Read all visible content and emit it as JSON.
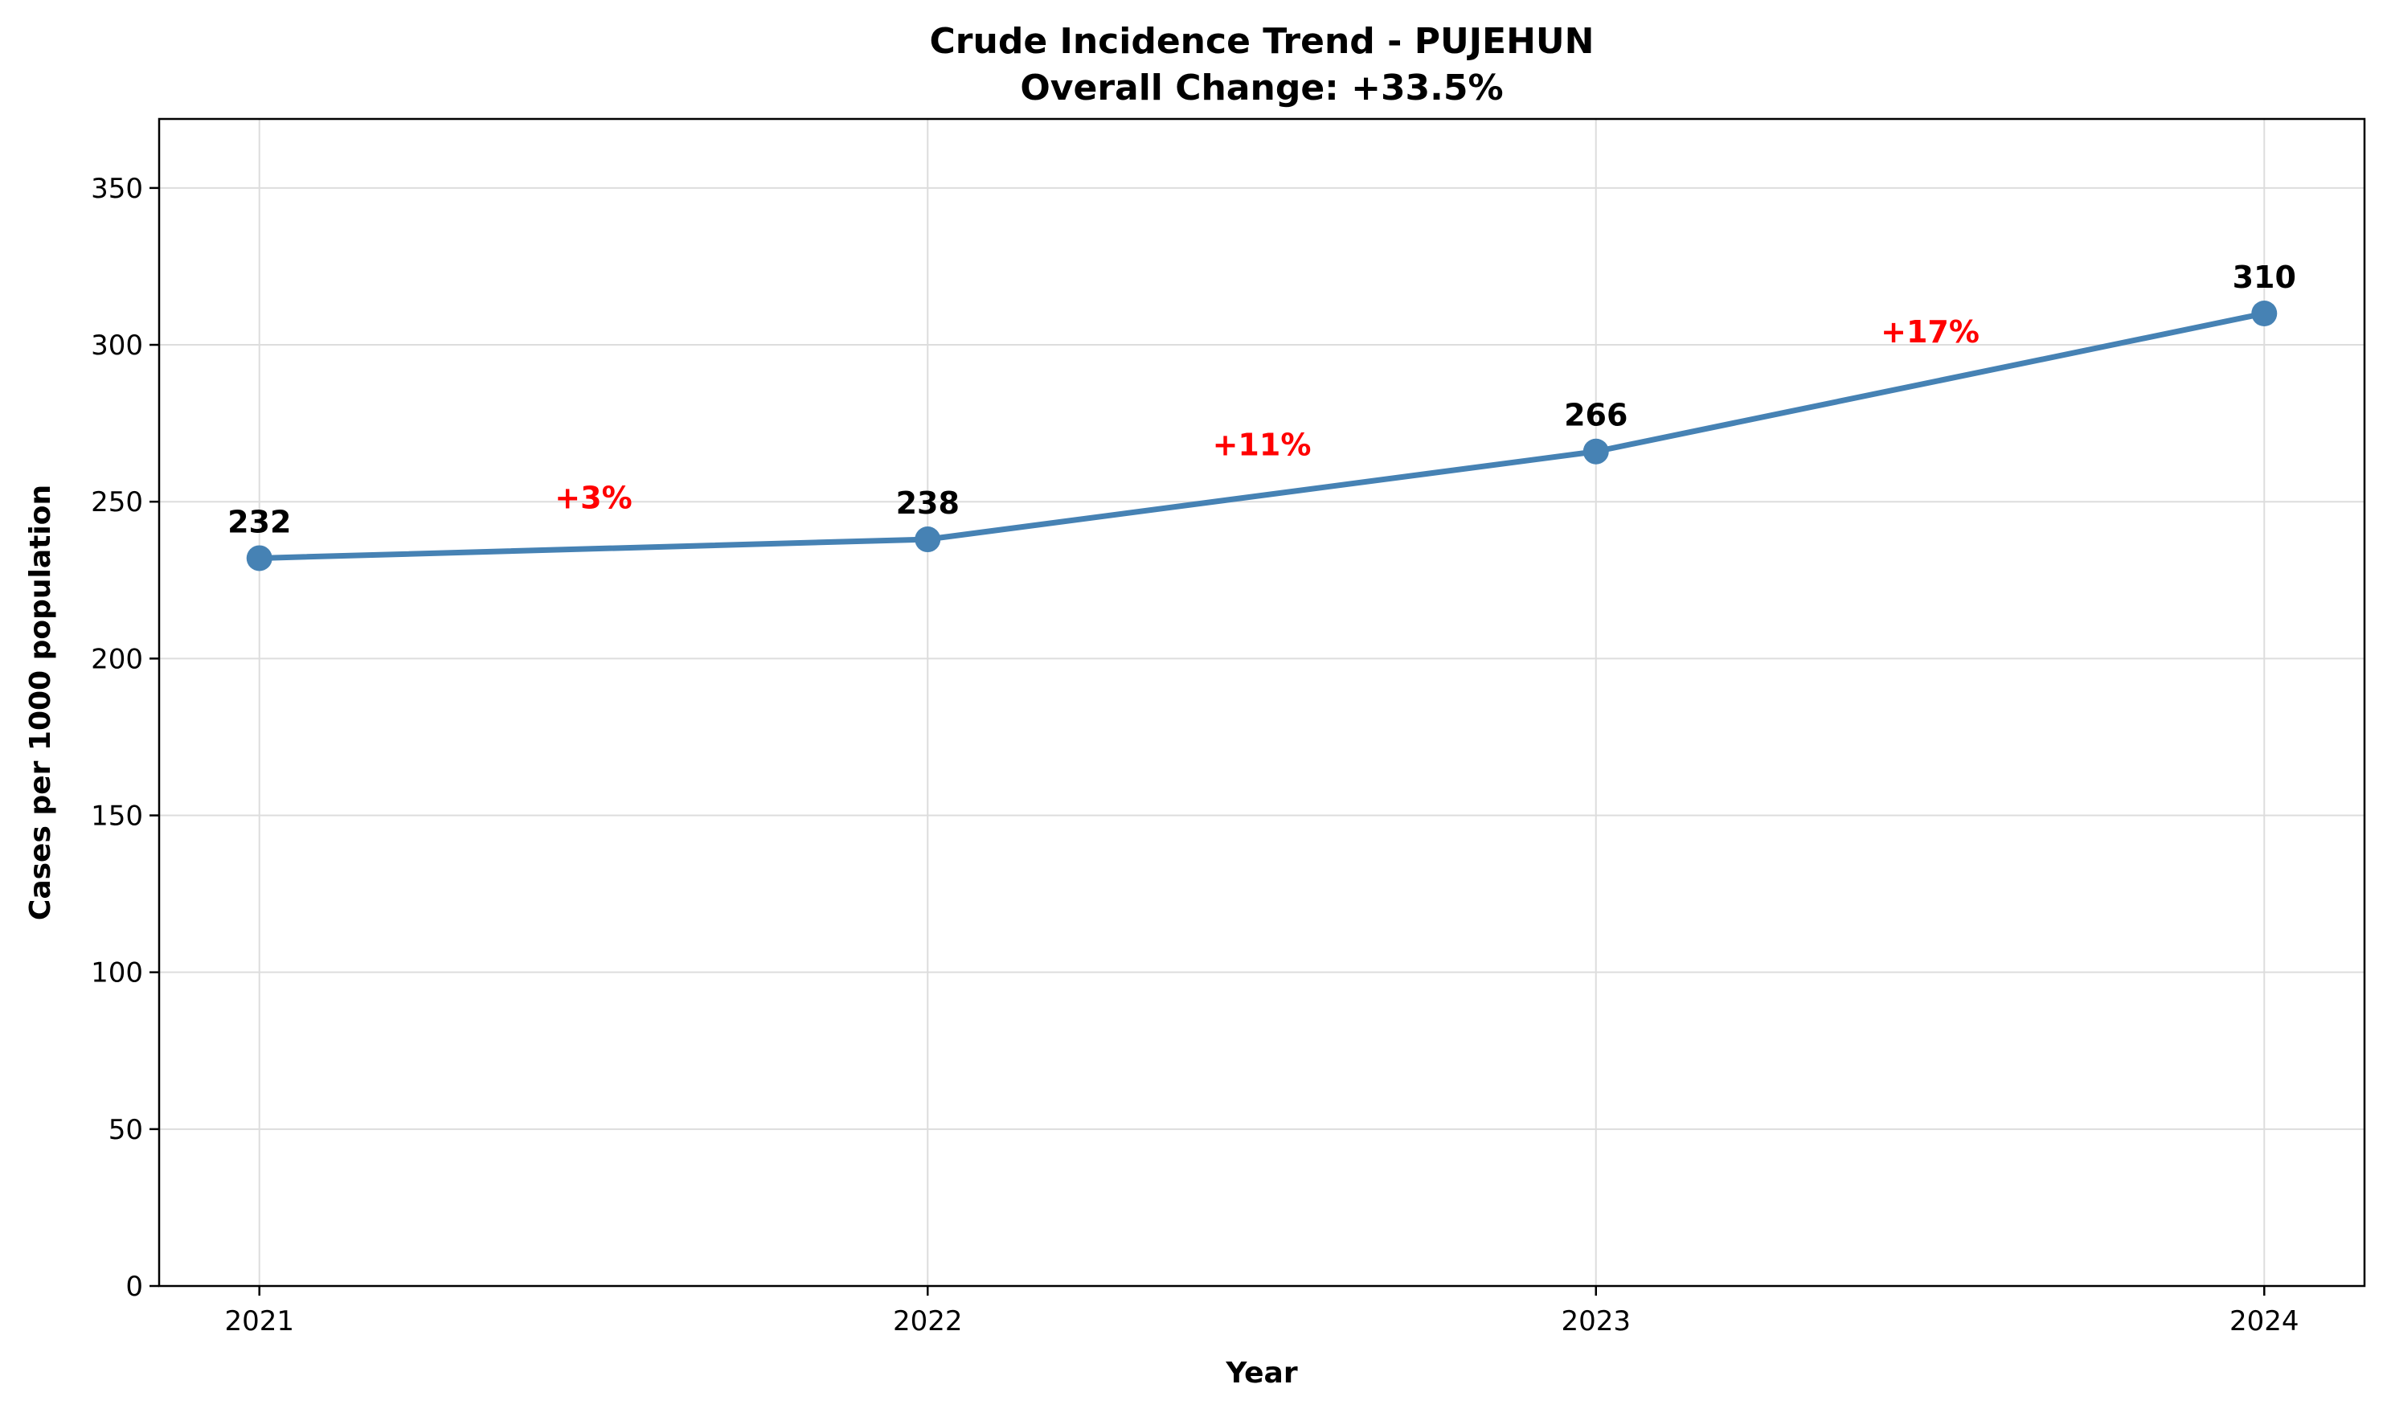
{
  "chart_data": {
    "type": "line",
    "title": "Crude Incidence Trend - PUJEHUN",
    "subtitle": "Overall Change: +33.5%",
    "xlabel": "Year",
    "ylabel": "Cases per 1000 population",
    "categories": [
      "2021",
      "2022",
      "2023",
      "2024"
    ],
    "values": [
      232,
      238,
      266,
      310
    ],
    "value_labels": [
      "232",
      "238",
      "266",
      "310"
    ],
    "change_labels": [
      "+3%",
      "+11%",
      "+17%"
    ],
    "ylim": [
      0,
      372
    ],
    "xlim": [
      -0.15,
      3.15
    ],
    "yticks": [
      0,
      50,
      100,
      150,
      200,
      250,
      300,
      350
    ],
    "grid": true,
    "line_color": "#4682b4",
    "change_color": "#ff0000"
  }
}
